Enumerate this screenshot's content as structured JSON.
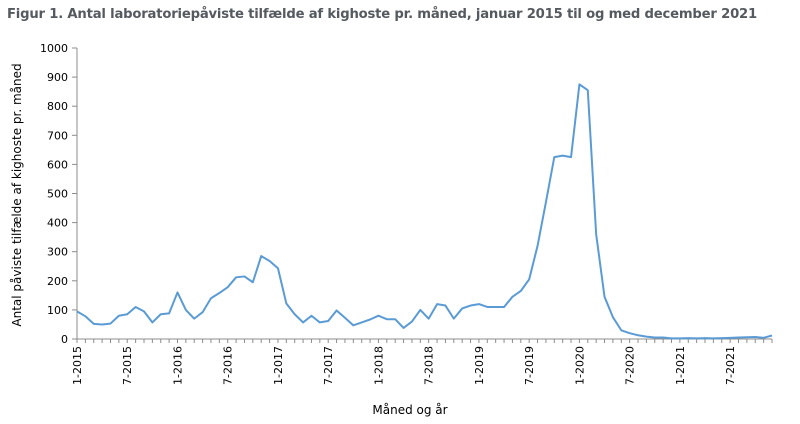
{
  "title": "Figur 1. Antal laboratoriepåviste tilfælde af kighoste pr. måned, januar 2015 til og med december 2021",
  "chart_data": {
    "type": "line",
    "title": "Figur 1. Antal laboratoriepåviste tilfælde af kighoste pr. måned, januar 2015 til og med december 2021",
    "xlabel": "Måned og år",
    "ylabel": "Antal påviste tilfælde af kighoste pr. måned",
    "ylim": [
      0,
      1000
    ],
    "yticks": [
      0,
      100,
      200,
      300,
      400,
      500,
      600,
      700,
      800,
      900,
      1000
    ],
    "xtick_labels": [
      "1-2015",
      "7-2015",
      "1-2016",
      "7-2016",
      "1-2017",
      "7-2017",
      "1-2018",
      "7-2018",
      "1-2019",
      "7-2019",
      "1-2020",
      "7-2020",
      "1-2021",
      "7-2021"
    ],
    "color": "#5b9bd5",
    "grid": false,
    "x": [
      "1-2015",
      "2-2015",
      "3-2015",
      "4-2015",
      "5-2015",
      "6-2015",
      "7-2015",
      "8-2015",
      "9-2015",
      "10-2015",
      "11-2015",
      "12-2015",
      "1-2016",
      "2-2016",
      "3-2016",
      "4-2016",
      "5-2016",
      "6-2016",
      "7-2016",
      "8-2016",
      "9-2016",
      "10-2016",
      "11-2016",
      "12-2016",
      "1-2017",
      "2-2017",
      "3-2017",
      "4-2017",
      "5-2017",
      "6-2017",
      "7-2017",
      "8-2017",
      "9-2017",
      "10-2017",
      "11-2017",
      "12-2017",
      "1-2018",
      "2-2018",
      "3-2018",
      "4-2018",
      "5-2018",
      "6-2018",
      "7-2018",
      "8-2018",
      "9-2018",
      "10-2018",
      "11-2018",
      "12-2018",
      "1-2019",
      "2-2019",
      "3-2019",
      "4-2019",
      "5-2019",
      "6-2019",
      "7-2019",
      "8-2019",
      "9-2019",
      "10-2019",
      "11-2019",
      "12-2019",
      "1-2020",
      "2-2020",
      "3-2020",
      "4-2020",
      "5-2020",
      "6-2020",
      "7-2020",
      "8-2020",
      "9-2020",
      "10-2020",
      "11-2020",
      "12-2020",
      "1-2021",
      "2-2021",
      "3-2021",
      "4-2021",
      "5-2021",
      "6-2021",
      "7-2021",
      "8-2021",
      "9-2021",
      "10-2021",
      "11-2021",
      "12-2021"
    ],
    "series": [
      {
        "values": [
          95,
          78,
          52,
          50,
          53,
          80,
          85,
          110,
          95,
          57,
          85,
          88,
          160,
          100,
          70,
          92,
          140,
          158,
          178,
          212,
          215,
          195,
          285,
          268,
          243,
          122,
          85,
          57,
          80,
          57,
          62,
          98,
          73,
          47,
          57,
          67,
          80,
          68,
          68,
          38,
          60,
          100,
          70,
          120,
          115,
          70,
          105,
          115,
          120,
          110,
          110,
          110,
          145,
          165,
          205,
          320,
          470,
          625,
          630,
          625,
          875,
          855,
          360,
          145,
          75,
          30,
          20,
          13,
          8,
          5,
          5,
          2,
          2,
          3,
          2,
          3,
          2,
          3,
          4,
          5,
          6,
          7,
          4,
          12
        ]
      }
    ]
  }
}
